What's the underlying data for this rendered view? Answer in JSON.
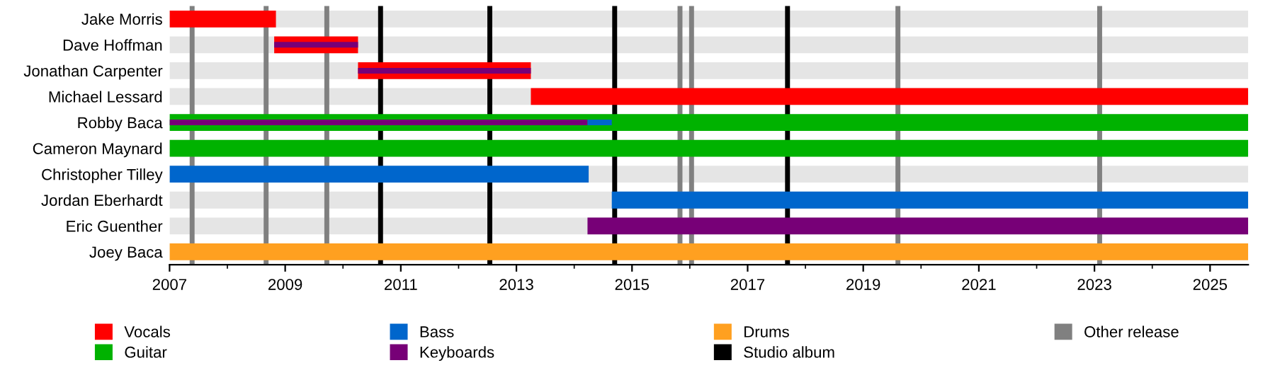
{
  "chart_data": {
    "type": "bar",
    "orientation": "horizontal",
    "categories": [
      "Jake Morris",
      "Dave Hoffman",
      "Jonathan Carpenter",
      "Michael Lessard",
      "Robby Baca",
      "Cameron Maynard",
      "Christopher Tilley",
      "Jordan Eberhardt",
      "Eric Guenther",
      "Joey Baca"
    ],
    "series": [
      {
        "name": "Vocals",
        "color": "#ff0000",
        "base": [
          2007,
          2008.81,
          2010.26,
          2013.25,
          null,
          null,
          null,
          null,
          null,
          null
        ],
        "values": [
          1.84,
          1.45,
          2.99,
          12.41,
          null,
          null,
          null,
          null,
          null,
          null
        ]
      },
      {
        "name": "Guitar",
        "color": "#00b200",
        "base": [
          null,
          null,
          null,
          null,
          2007,
          2007,
          null,
          null,
          null,
          null
        ],
        "values": [
          null,
          null,
          null,
          null,
          18.66,
          18.66,
          null,
          null,
          null,
          null
        ]
      },
      {
        "name": "Bass",
        "color": "#0066cc",
        "base": [
          null,
          null,
          null,
          null,
          null,
          null,
          2007,
          2014.65,
          null,
          null
        ],
        "values": [
          null,
          null,
          null,
          null,
          null,
          null,
          7.25,
          11.01,
          null,
          null
        ]
      },
      {
        "name": "Keyboards",
        "color": "#770077",
        "base": [
          null,
          null,
          null,
          null,
          null,
          null,
          null,
          null,
          2014.23,
          null
        ],
        "values": [
          null,
          null,
          null,
          null,
          null,
          null,
          null,
          null,
          11.43,
          null
        ]
      },
      {
        "name": "Drums",
        "color": "#ffa020",
        "base": [
          null,
          null,
          null,
          null,
          null,
          null,
          null,
          null,
          null,
          2007
        ],
        "values": [
          null,
          null,
          null,
          null,
          null,
          null,
          null,
          null,
          null,
          18.66
        ]
      },
      {
        "color": "#770077",
        "base": [
          null,
          2008.81,
          2010.26,
          null,
          2007,
          null,
          null,
          null,
          null,
          null
        ],
        "values": [
          null,
          1.45,
          2.99,
          null,
          7.23,
          null,
          null,
          null,
          null,
          null
        ]
      },
      {
        "color": "#0066cc",
        "base": [
          null,
          null,
          null,
          null,
          2014.23,
          null,
          null,
          null,
          null,
          null
        ],
        "values": [
          null,
          null,
          null,
          null,
          0.42,
          null,
          null,
          null,
          null,
          null
        ]
      }
    ],
    "xlim": [
      2007,
      2025.66
    ],
    "xticks": [
      2007,
      2009,
      2011,
      2013,
      2015,
      2017,
      2019,
      2021,
      2023,
      2025
    ],
    "ref_lines": [
      {
        "axis": "x",
        "value": 2010.65,
        "label": "Studio album",
        "color": "#000000"
      },
      {
        "axis": "x",
        "value": 2012.54,
        "color": "#000000"
      },
      {
        "axis": "x",
        "value": 2014.7,
        "color": "#000000"
      },
      {
        "axis": "x",
        "value": 2017.69,
        "color": "#000000"
      },
      {
        "axis": "x",
        "value": 2007.39,
        "label": "Other release",
        "color": "#808080"
      },
      {
        "axis": "x",
        "value": 2008.67,
        "color": "#808080"
      },
      {
        "axis": "x",
        "value": 2009.72,
        "color": "#808080"
      },
      {
        "axis": "x",
        "value": 2015.83,
        "color": "#808080"
      },
      {
        "axis": "x",
        "value": 2016.03,
        "color": "#808080"
      },
      {
        "axis": "x",
        "value": 2019.6,
        "color": "#808080"
      },
      {
        "axis": "x",
        "value": 2023.09,
        "color": "#808080"
      }
    ],
    "legend": "bottom"
  }
}
